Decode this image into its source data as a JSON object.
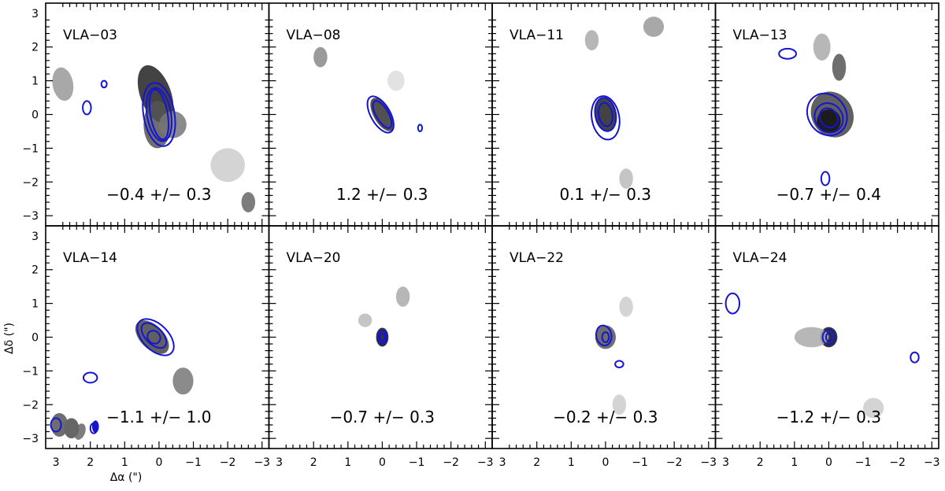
{
  "chart_data": {
    "type": "contour",
    "layout": "2x4 grid of panels",
    "xlabel": "Δα (\")",
    "ylabel": "Δδ (\")",
    "xlim": [
      3.3,
      -3.2
    ],
    "ylim": [
      -3.3,
      3.3
    ],
    "xticks": [
      3,
      2,
      1,
      0,
      -1,
      -2,
      -3
    ],
    "yticks": [
      -3,
      -2,
      -1,
      0,
      1,
      2,
      3
    ],
    "colors": {
      "contour": "#1414d2",
      "frame": "#000000"
    },
    "panels": [
      {
        "label": "VLA−03",
        "value_text": "−0.4 +/− 0.3"
      },
      {
        "label": "VLA−08",
        "value_text": "1.2 +/− 0.3"
      },
      {
        "label": "VLA−11",
        "value_text": "0.1 +/− 0.3"
      },
      {
        "label": "VLA−13",
        "value_text": "−0.7 +/− 0.4"
      },
      {
        "label": "VLA−14",
        "value_text": "−1.1 +/− 1.0"
      },
      {
        "label": "VLA−20",
        "value_text": "−0.7 +/− 0.3"
      },
      {
        "label": "VLA−22",
        "value_text": "−0.2 +/− 0.3"
      },
      {
        "label": "VLA−24",
        "value_text": "−1.2 +/− 0.3"
      }
    ]
  }
}
